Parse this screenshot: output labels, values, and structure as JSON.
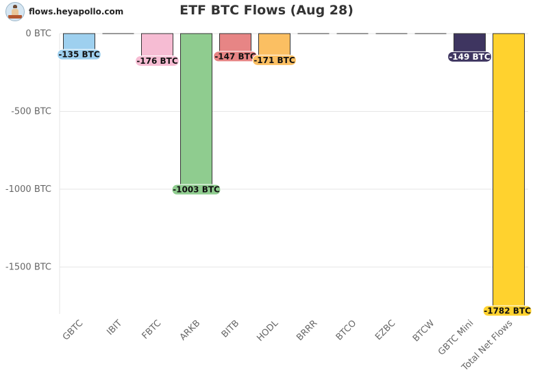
{
  "brand": {
    "text": "flows.heyapollo.com",
    "icon": "apollo-logo-icon"
  },
  "chart_data": {
    "type": "bar",
    "title": "ETF BTC Flows (Aug 28)",
    "xlabel": "",
    "ylabel": "",
    "unit": "BTC",
    "ylim": [
      -1800,
      0
    ],
    "yticks": [
      0,
      -500,
      -1000,
      -1500
    ],
    "ytick_labels": [
      "0 BTC",
      "-500 BTC",
      "-1000 BTC",
      "-1500 BTC"
    ],
    "grid": true,
    "categories": [
      "GBTC",
      "IBIT",
      "FBTC",
      "ARKB",
      "BITB",
      "HODL",
      "BRRR",
      "BTCO",
      "EZBC",
      "BTCW",
      "GBTC Mini",
      "Total Net Flows"
    ],
    "values": [
      -135,
      0,
      -176,
      -1003,
      -147,
      -171,
      0,
      0,
      0,
      0,
      -149,
      -1782
    ],
    "data_labels": [
      "-135 BTC",
      "",
      "-176 BTC",
      "-1003 BTC",
      "-147 BTC",
      "-171 BTC",
      "",
      "",
      "",
      "",
      "-149 BTC",
      "-1782 BTC"
    ],
    "colors": [
      "#9ed0ef",
      "#f0f0f0",
      "#f6bcd3",
      "#8fcc8f",
      "#e78585",
      "#fbbf62",
      "#f0f0f0",
      "#f0f0f0",
      "#f0f0f0",
      "#f0f0f0",
      "#3e3560",
      "#ffd22e"
    ]
  }
}
